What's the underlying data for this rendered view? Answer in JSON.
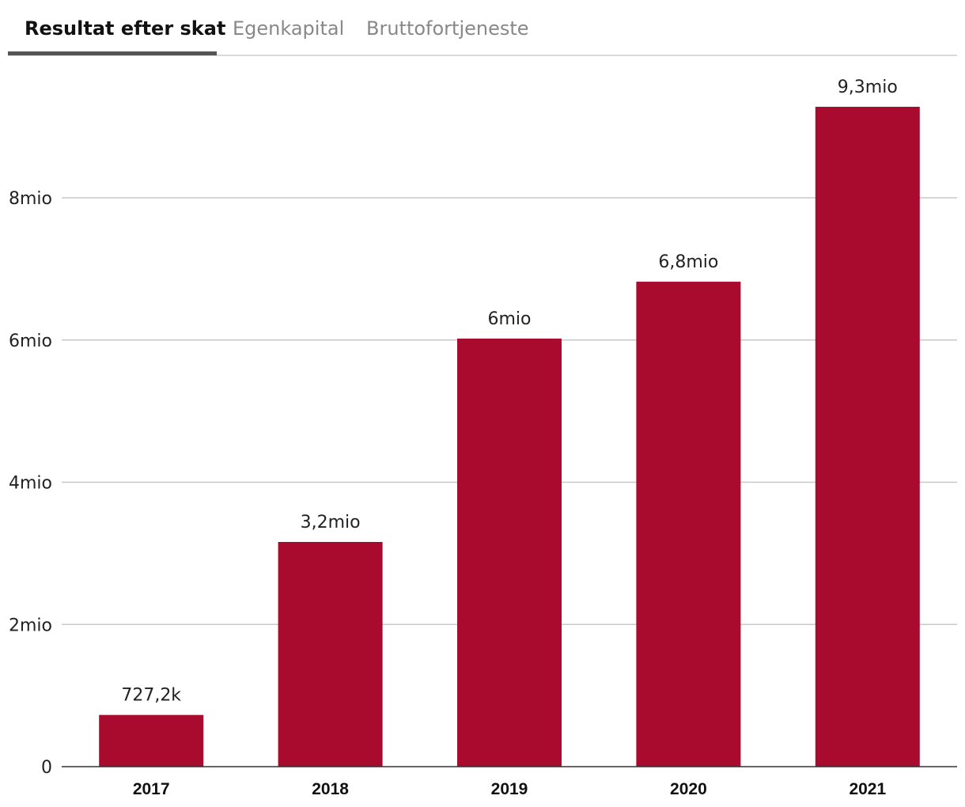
{
  "tabs": [
    {
      "label": "Resultat efter skat",
      "active": true
    },
    {
      "label": "Egenkapital",
      "active": false
    },
    {
      "label": "Bruttofortjeneste",
      "active": false
    }
  ],
  "colors": {
    "bar": "#a90b2f"
  },
  "chart_data": {
    "type": "bar",
    "title": "Resultat efter skat",
    "xlabel": "",
    "ylabel": "",
    "categories": [
      "2017",
      "2018",
      "2019",
      "2020",
      "2021"
    ],
    "values": [
      727200,
      3160000,
      6020000,
      6820000,
      9280000
    ],
    "data_labels": [
      "727,2k",
      "3,2mio",
      "6mio",
      "6,8mio",
      "9,3mio"
    ],
    "ylim": [
      0,
      9500000
    ],
    "yticks": [
      0,
      2000000,
      4000000,
      6000000,
      8000000
    ],
    "ytick_labels": [
      "0",
      "2mio",
      "4mio",
      "6mio",
      "8mio"
    ],
    "grid": true
  }
}
